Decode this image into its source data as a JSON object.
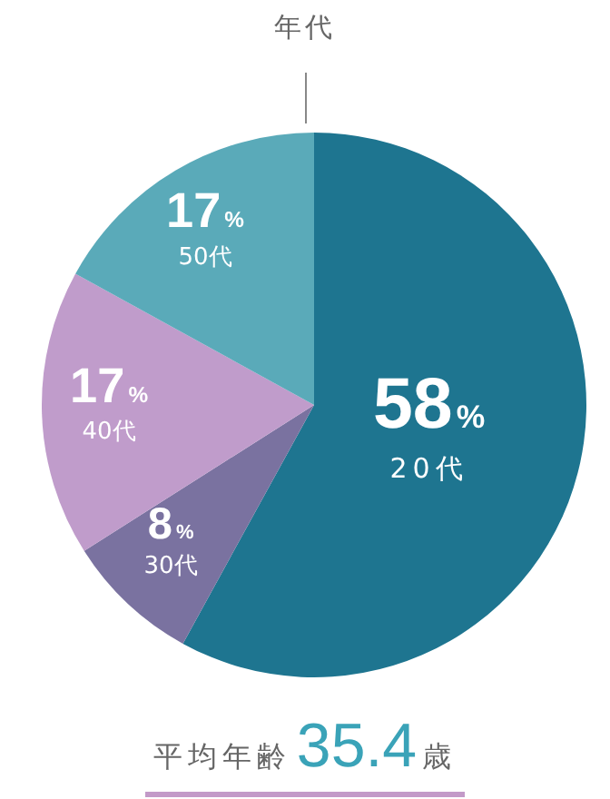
{
  "chart_data": {
    "type": "pie",
    "title": "年代",
    "categories": [
      "20代",
      "30代",
      "40代",
      "50代"
    ],
    "values": [
      58,
      8,
      17,
      17
    ],
    "colors": [
      "#1e7590",
      "#7a72a0",
      "#c09ccb",
      "#5aaab9"
    ],
    "value_labels": [
      "58%",
      "8%",
      "17%",
      "17%"
    ],
    "annotations": [
      "平均年齢35.4歳"
    ],
    "legend": false
  }
}
